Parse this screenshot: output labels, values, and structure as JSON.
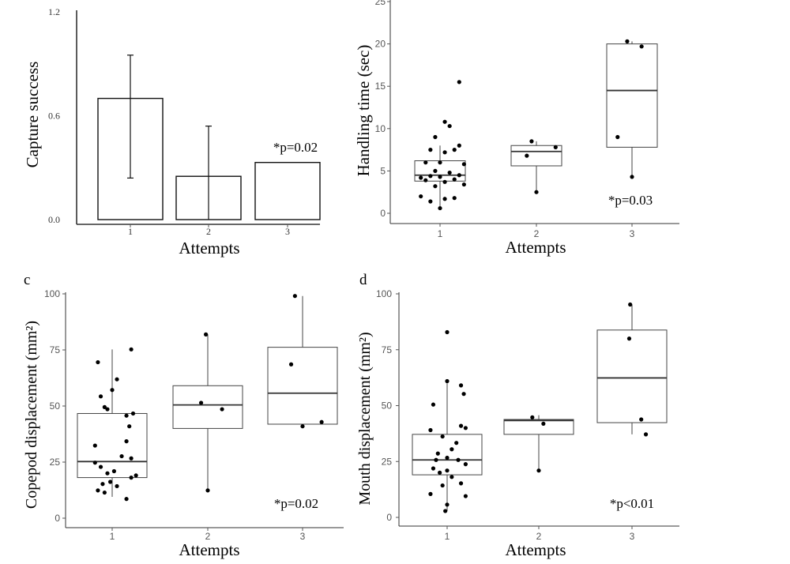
{
  "chart_data": [
    {
      "type": "bar",
      "panel_label": "",
      "xlabel": "Attempts",
      "ylabel": "Capture success",
      "categories": [
        "1",
        "2",
        "3"
      ],
      "values": [
        0.7,
        0.25,
        0.33
      ],
      "error_low": [
        0.24,
        0.0,
        null
      ],
      "error_high": [
        0.95,
        0.54,
        null
      ],
      "ylim": [
        0,
        1.2
      ],
      "yticks": [
        "0.0",
        "0.6",
        "1.2"
      ],
      "annotation": "*p=0.02",
      "grid": false
    },
    {
      "type": "box",
      "panel_label": "",
      "xlabel": "Attempts",
      "ylabel": "Handling time (sec)",
      "categories": [
        "1",
        "2",
        "3"
      ],
      "ylim": [
        0,
        25
      ],
      "yticks": [
        "0",
        "5",
        "10",
        "15",
        "20",
        "25"
      ],
      "boxes": [
        {
          "q1": 3.8,
          "median": 4.5,
          "q3": 6.2,
          "whisker_low": 0.6,
          "whisker_high": 8.0
        },
        {
          "q1": 5.6,
          "median": 7.3,
          "q3": 8.0,
          "whisker_low": 2.5,
          "whisker_high": 8.5
        },
        {
          "q1": 7.8,
          "median": 14.5,
          "q3": 20.0,
          "whisker_low": 4.2,
          "whisker_high": 20.3
        }
      ],
      "points": [
        {
          "g": 1,
          "x": 1.2,
          "y": 15.5
        },
        {
          "g": 1,
          "x": 1.05,
          "y": 10.8
        },
        {
          "g": 1,
          "x": 1.1,
          "y": 10.3
        },
        {
          "g": 1,
          "x": 0.95,
          "y": 9.0
        },
        {
          "g": 1,
          "x": 1.2,
          "y": 8.0
        },
        {
          "g": 1,
          "x": 1.15,
          "y": 7.5
        },
        {
          "g": 1,
          "x": 0.9,
          "y": 7.5
        },
        {
          "g": 1,
          "x": 1.05,
          "y": 7.2
        },
        {
          "g": 1,
          "x": 1.0,
          "y": 6.0
        },
        {
          "g": 1,
          "x": 0.85,
          "y": 6.0
        },
        {
          "g": 1,
          "x": 1.25,
          "y": 5.8
        },
        {
          "g": 1,
          "x": 0.95,
          "y": 5.0
        },
        {
          "g": 1,
          "x": 1.1,
          "y": 4.8
        },
        {
          "g": 1,
          "x": 1.2,
          "y": 4.5
        },
        {
          "g": 1,
          "x": 0.9,
          "y": 4.4
        },
        {
          "g": 1,
          "x": 0.8,
          "y": 4.2
        },
        {
          "g": 1,
          "x": 1.0,
          "y": 4.3
        },
        {
          "g": 1,
          "x": 1.15,
          "y": 4.0
        },
        {
          "g": 1,
          "x": 0.85,
          "y": 3.9
        },
        {
          "g": 1,
          "x": 1.05,
          "y": 3.7
        },
        {
          "g": 1,
          "x": 1.25,
          "y": 3.4
        },
        {
          "g": 1,
          "x": 0.95,
          "y": 3.2
        },
        {
          "g": 1,
          "x": 0.8,
          "y": 2.0
        },
        {
          "g": 1,
          "x": 1.15,
          "y": 1.8
        },
        {
          "g": 1,
          "x": 1.05,
          "y": 1.7
        },
        {
          "g": 1,
          "x": 0.9,
          "y": 1.4
        },
        {
          "g": 1,
          "x": 1.0,
          "y": 0.6
        },
        {
          "g": 2,
          "x": 1.95,
          "y": 8.5
        },
        {
          "g": 2,
          "x": 2.2,
          "y": 7.8
        },
        {
          "g": 2,
          "x": 1.9,
          "y": 6.8
        },
        {
          "g": 2,
          "x": 2.0,
          "y": 2.5
        },
        {
          "g": 3,
          "x": 2.95,
          "y": 20.3
        },
        {
          "g": 3,
          "x": 3.1,
          "y": 19.7
        },
        {
          "g": 3,
          "x": 2.85,
          "y": 9.0
        },
        {
          "g": 3,
          "x": 3.0,
          "y": 4.3
        }
      ],
      "annotation": "*p=0.03",
      "grid": false
    },
    {
      "type": "box",
      "panel_label": "c",
      "xlabel": "Attempts",
      "ylabel": "Copepod displacement (mm²)",
      "categories": [
        "1",
        "2",
        "3"
      ],
      "ylim": [
        0,
        105
      ],
      "yticks": [
        "0",
        "25",
        "50",
        "75",
        "100"
      ],
      "boxes": [
        {
          "q1": 19,
          "median": 26.5,
          "q3": 49,
          "whisker_low": 10,
          "whisker_high": 79
        },
        {
          "q1": 42,
          "median": 53,
          "q3": 62,
          "whisker_low": 13,
          "whisker_high": 86
        },
        {
          "q1": 44,
          "median": 58.5,
          "q3": 80,
          "whisker_low": 43,
          "whisker_high": 104
        }
      ],
      "points": [
        {
          "g": 1,
          "x": 1.2,
          "y": 79
        },
        {
          "g": 1,
          "x": 0.85,
          "y": 73
        },
        {
          "g": 1,
          "x": 1.05,
          "y": 65
        },
        {
          "g": 1,
          "x": 1.0,
          "y": 60
        },
        {
          "g": 1,
          "x": 0.88,
          "y": 57
        },
        {
          "g": 1,
          "x": 0.92,
          "y": 52
        },
        {
          "g": 1,
          "x": 0.95,
          "y": 51
        },
        {
          "g": 1,
          "x": 1.22,
          "y": 49
        },
        {
          "g": 1,
          "x": 1.15,
          "y": 48
        },
        {
          "g": 1,
          "x": 1.18,
          "y": 43
        },
        {
          "g": 1,
          "x": 1.15,
          "y": 36
        },
        {
          "g": 1,
          "x": 0.82,
          "y": 34
        },
        {
          "g": 1,
          "x": 1.1,
          "y": 29
        },
        {
          "g": 1,
          "x": 1.2,
          "y": 28
        },
        {
          "g": 1,
          "x": 0.82,
          "y": 26
        },
        {
          "g": 1,
          "x": 0.88,
          "y": 24
        },
        {
          "g": 1,
          "x": 1.02,
          "y": 22
        },
        {
          "g": 1,
          "x": 0.95,
          "y": 21
        },
        {
          "g": 1,
          "x": 1.25,
          "y": 20
        },
        {
          "g": 1,
          "x": 1.2,
          "y": 19
        },
        {
          "g": 1,
          "x": 0.98,
          "y": 17
        },
        {
          "g": 1,
          "x": 0.9,
          "y": 16
        },
        {
          "g": 1,
          "x": 1.05,
          "y": 15
        },
        {
          "g": 1,
          "x": 0.85,
          "y": 13
        },
        {
          "g": 1,
          "x": 0.92,
          "y": 12
        },
        {
          "g": 1,
          "x": 1.15,
          "y": 9
        },
        {
          "g": 2,
          "x": 1.98,
          "y": 86
        },
        {
          "g": 2,
          "x": 1.93,
          "y": 54
        },
        {
          "g": 2,
          "x": 2.15,
          "y": 51
        },
        {
          "g": 2,
          "x": 2.0,
          "y": 13
        },
        {
          "g": 3,
          "x": 2.92,
          "y": 104
        },
        {
          "g": 3,
          "x": 2.88,
          "y": 72
        },
        {
          "g": 3,
          "x": 3.2,
          "y": 45
        },
        {
          "g": 3,
          "x": 3.0,
          "y": 43
        }
      ],
      "annotation": "*p=0.02",
      "grid": false
    },
    {
      "type": "box",
      "panel_label": "d",
      "xlabel": "Attempts",
      "ylabel": "Mouth displacement (mm²)",
      "categories": [
        "1",
        "2",
        "3"
      ],
      "ylim": [
        0,
        105
      ],
      "yticks": [
        "0",
        "25",
        "50",
        "75",
        "100"
      ],
      "boxes": [
        {
          "q1": 20,
          "median": 27,
          "q3": 39,
          "whisker_low": 3,
          "whisker_high": 63
        },
        {
          "q1": 39,
          "median": 45.5,
          "q3": 46,
          "whisker_low": 22,
          "whisker_high": 48
        },
        {
          "q1": 44.5,
          "median": 65.5,
          "q3": 88,
          "whisker_low": 39,
          "whisker_high": 100
        }
      ],
      "points": [
        {
          "g": 1,
          "x": 1.0,
          "y": 87
        },
        {
          "g": 1,
          "x": 1.0,
          "y": 64
        },
        {
          "g": 1,
          "x": 1.15,
          "y": 62
        },
        {
          "g": 1,
          "x": 1.18,
          "y": 58
        },
        {
          "g": 1,
          "x": 0.85,
          "y": 53
        },
        {
          "g": 1,
          "x": 1.15,
          "y": 43
        },
        {
          "g": 1,
          "x": 1.2,
          "y": 42
        },
        {
          "g": 1,
          "x": 0.82,
          "y": 41
        },
        {
          "g": 1,
          "x": 0.95,
          "y": 38
        },
        {
          "g": 1,
          "x": 1.1,
          "y": 35
        },
        {
          "g": 1,
          "x": 1.05,
          "y": 32
        },
        {
          "g": 1,
          "x": 0.9,
          "y": 30
        },
        {
          "g": 1,
          "x": 1.0,
          "y": 28
        },
        {
          "g": 1,
          "x": 0.88,
          "y": 27
        },
        {
          "g": 1,
          "x": 1.12,
          "y": 27
        },
        {
          "g": 1,
          "x": 1.2,
          "y": 25
        },
        {
          "g": 1,
          "x": 0.85,
          "y": 23
        },
        {
          "g": 1,
          "x": 1.0,
          "y": 22
        },
        {
          "g": 1,
          "x": 0.92,
          "y": 21
        },
        {
          "g": 1,
          "x": 1.05,
          "y": 19
        },
        {
          "g": 1,
          "x": 1.15,
          "y": 16
        },
        {
          "g": 1,
          "x": 0.95,
          "y": 15
        },
        {
          "g": 1,
          "x": 0.82,
          "y": 11
        },
        {
          "g": 1,
          "x": 1.2,
          "y": 10
        },
        {
          "g": 1,
          "x": 1.0,
          "y": 6
        },
        {
          "g": 1,
          "x": 0.98,
          "y": 3
        },
        {
          "g": 2,
          "x": 1.93,
          "y": 47
        },
        {
          "g": 2,
          "x": 2.05,
          "y": 44
        },
        {
          "g": 2,
          "x": 2.0,
          "y": 22
        },
        {
          "g": 3,
          "x": 2.98,
          "y": 100
        },
        {
          "g": 3,
          "x": 2.97,
          "y": 84
        },
        {
          "g": 3,
          "x": 3.1,
          "y": 46
        },
        {
          "g": 3,
          "x": 3.15,
          "y": 39
        }
      ],
      "annotation": "*p<0.01",
      "grid": false
    }
  ]
}
